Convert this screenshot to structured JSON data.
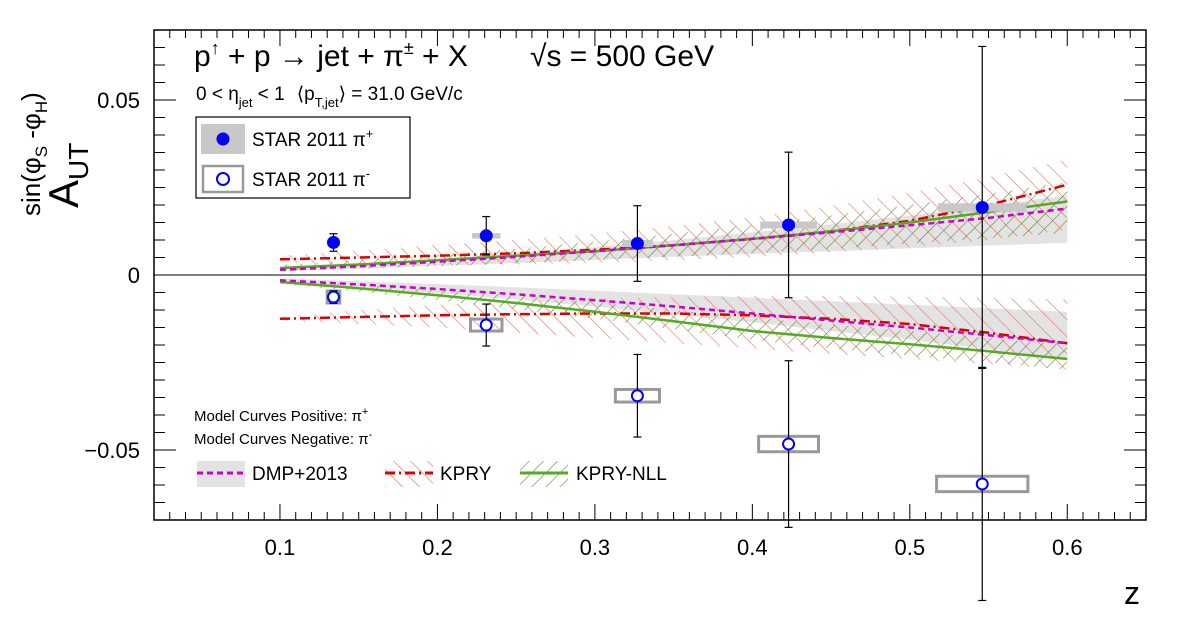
{
  "chart_data": {
    "type": "scatter",
    "title": "p↑ + p → jet + π± + X",
    "energy": "√s = 500 GeV",
    "subtitle": {
      "eta_range": "0 < η",
      "eta_sub": "jet",
      "eta_upper": " < 1",
      "pt_open": "⟨p",
      "pt_sub": "T,jet",
      "pt_close": "⟩ = 31.0 GeV/c"
    },
    "xlabel": "z",
    "ylabel": {
      "base": "A",
      "sub": "UT",
      "sup": "sin(φ",
      "sup_s": "S",
      "sup_mid": " -φ",
      "sup_h": "H",
      "sup_close": ")"
    },
    "xlim": [
      0.02,
      0.65
    ],
    "ylim": [
      -0.07,
      0.07
    ],
    "x_ticks": [
      {
        "value": 0.1,
        "label": "0.1"
      },
      {
        "value": 0.2,
        "label": "0.2"
      },
      {
        "value": 0.3,
        "label": "0.3"
      },
      {
        "value": 0.4,
        "label": "0.4"
      },
      {
        "value": 0.5,
        "label": "0.5"
      },
      {
        "value": 0.6,
        "label": "0.6"
      }
    ],
    "y_ticks": [
      {
        "value": 0.05,
        "label": "0.05"
      },
      {
        "value": 0,
        "label": "0"
      },
      {
        "value": -0.05,
        "label": "−0.05"
      }
    ],
    "data_series": [
      {
        "name": "STAR 2011 π+",
        "legend_base": "STAR 2011 π",
        "legend_sup": "+",
        "color": "#0000ff",
        "filled": true,
        "points": [
          {
            "x": 0.134,
            "y": 0.0093,
            "err": 0.0025,
            "sys": 0.0008,
            "sys_x": 0.004
          },
          {
            "x": 0.231,
            "y": 0.0112,
            "err": 0.0055,
            "sys": 0.0008,
            "sys_x": 0.009
          },
          {
            "x": 0.327,
            "y": 0.009,
            "err": 0.0108,
            "sys": 0.001,
            "sys_x": 0.01
          },
          {
            "x": 0.423,
            "y": 0.0143,
            "err": 0.0208,
            "sys": 0.001,
            "sys_x": 0.018
          },
          {
            "x": 0.546,
            "y": 0.0193,
            "err": 0.046,
            "sys": 0.0012,
            "sys_x": 0.028
          }
        ]
      },
      {
        "name": "STAR 2011 π-",
        "legend_base": "STAR 2011 π",
        "legend_sup": "-",
        "color": "#0000ff",
        "filled": false,
        "points": [
          {
            "x": 0.134,
            "y": -0.0063,
            "err": 0.0018,
            "sys": 0.0006,
            "sys_x": 0.004
          },
          {
            "x": 0.231,
            "y": -0.0143,
            "err": 0.006,
            "sys": 0.0008,
            "sys_x": 0.01
          },
          {
            "x": 0.327,
            "y": -0.0345,
            "err": 0.0118,
            "sys": 0.0018,
            "sys_x": 0.014
          },
          {
            "x": 0.423,
            "y": -0.0483,
            "err": 0.0238,
            "sys": 0.0022,
            "sys_x": 0.019
          },
          {
            "x": 0.546,
            "y": -0.0597,
            "err": 0.0333,
            "sys": 0.0022,
            "sys_x": 0.029
          }
        ]
      }
    ],
    "model_x": [
      0.1,
      0.15,
      0.2,
      0.25,
      0.3,
      0.35,
      0.4,
      0.45,
      0.5,
      0.55,
      0.6
    ],
    "models": {
      "dmp_pos": {
        "center": [
          0.0015,
          0.0025,
          0.0038,
          0.0052,
          0.0068,
          0.0085,
          0.0103,
          0.0122,
          0.0142,
          0.0163,
          0.019
        ],
        "low": [
          0.001,
          0.0018,
          0.0026,
          0.0034,
          0.0043,
          0.0052,
          0.006,
          0.0068,
          0.0076,
          0.0084,
          0.0092
        ],
        "high": [
          0.002,
          0.0032,
          0.0046,
          0.0062,
          0.008,
          0.01,
          0.0122,
          0.0145,
          0.017,
          0.0198,
          0.0228
        ]
      },
      "dmp_neg": {
        "center": [
          -0.0015,
          -0.0027,
          -0.004,
          -0.0055,
          -0.0072,
          -0.009,
          -0.011,
          -0.013,
          -0.015,
          -0.0172,
          -0.0195
        ],
        "low": [
          -0.002,
          -0.0035,
          -0.0052,
          -0.007,
          -0.009,
          -0.0112,
          -0.0135,
          -0.016,
          -0.0185,
          -0.0212,
          -0.024
        ],
        "high": [
          -0.001,
          -0.0018,
          -0.0026,
          -0.0035,
          -0.0045,
          -0.0055,
          -0.0065,
          -0.0075,
          -0.0085,
          -0.0095,
          -0.0105
        ]
      },
      "kpry_pos": {
        "center": [
          0.0045,
          0.005,
          0.0055,
          0.0062,
          0.0072,
          0.0085,
          0.0103,
          0.0125,
          0.0155,
          0.02,
          0.0258
        ],
        "low": [
          0.0035,
          0.003,
          0.0028,
          0.003,
          0.0035,
          0.0042,
          0.0052,
          0.0065,
          0.008,
          0.01,
          0.013
        ],
        "high": [
          0.0055,
          0.007,
          0.0085,
          0.01,
          0.0118,
          0.014,
          0.0165,
          0.0198,
          0.0235,
          0.028,
          0.033
        ]
      },
      "kpry_neg": {
        "center": [
          -0.0125,
          -0.012,
          -0.0115,
          -0.0112,
          -0.011,
          -0.011,
          -0.0115,
          -0.0125,
          -0.014,
          -0.0165,
          -0.0195
        ],
        "low": [
          -0.013,
          -0.014,
          -0.015,
          -0.0165,
          -0.018,
          -0.0195,
          -0.021,
          -0.0225,
          -0.024,
          -0.0255,
          -0.027
        ],
        "high": [
          -0.012,
          -0.01,
          -0.0085,
          -0.0075,
          -0.0068,
          -0.0063,
          -0.006,
          -0.006,
          -0.0062,
          -0.0065,
          -0.007
        ]
      },
      "nll_pos": {
        "center": [
          0.002,
          0.003,
          0.0042,
          0.0055,
          0.0068,
          0.0085,
          0.0103,
          0.0125,
          0.015,
          0.018,
          0.021
        ],
        "low": [
          0.0012,
          0.0018,
          0.0025,
          0.0033,
          0.0042,
          0.0052,
          0.0063,
          0.0075,
          0.009,
          0.0105,
          0.012
        ],
        "high": [
          0.0028,
          0.0042,
          0.0058,
          0.0075,
          0.0095,
          0.0118,
          0.0143,
          0.017,
          0.02,
          0.0232,
          0.0265
        ]
      },
      "nll_neg": {
        "center": [
          -0.002,
          -0.0038,
          -0.0058,
          -0.008,
          -0.0105,
          -0.0132,
          -0.016,
          -0.018,
          -0.0198,
          -0.0218,
          -0.024
        ],
        "low": [
          -0.0025,
          -0.0048,
          -0.0072,
          -0.0098,
          -0.0125,
          -0.0155,
          -0.0185,
          -0.021,
          -0.023,
          -0.025,
          -0.027
        ],
        "high": [
          -0.0015,
          -0.0028,
          -0.0042,
          -0.0058,
          -0.0078,
          -0.01,
          -0.0122,
          -0.0142,
          -0.016,
          -0.018,
          -0.02
        ]
      }
    },
    "model_labels": {
      "positive_prefix": "Model Curves Positive: π",
      "positive_sup": "+",
      "negative_prefix": "Model Curves Negative: π",
      "negative_sup": "-"
    },
    "model_legend": [
      {
        "name": "DMP+2013",
        "color": "#cc00cc",
        "style": "dashed",
        "fill": "#e0e0e0"
      },
      {
        "name": "KPRY",
        "color": "#dd0000",
        "style": "dashdot",
        "fill": "hatch-red"
      },
      {
        "name": "KPRY-NLL",
        "color": "#55aa22",
        "style": "solid",
        "fill": "hatch-green"
      }
    ],
    "colors": {
      "data": "#0000ff",
      "sys_box_fill": "#c8c8c8",
      "sys_box_stroke": "#999999",
      "dmp": "#cc00cc",
      "kpry": "#dd0000",
      "nll": "#55aa22",
      "dmp_band": "#e3e3e3"
    }
  }
}
